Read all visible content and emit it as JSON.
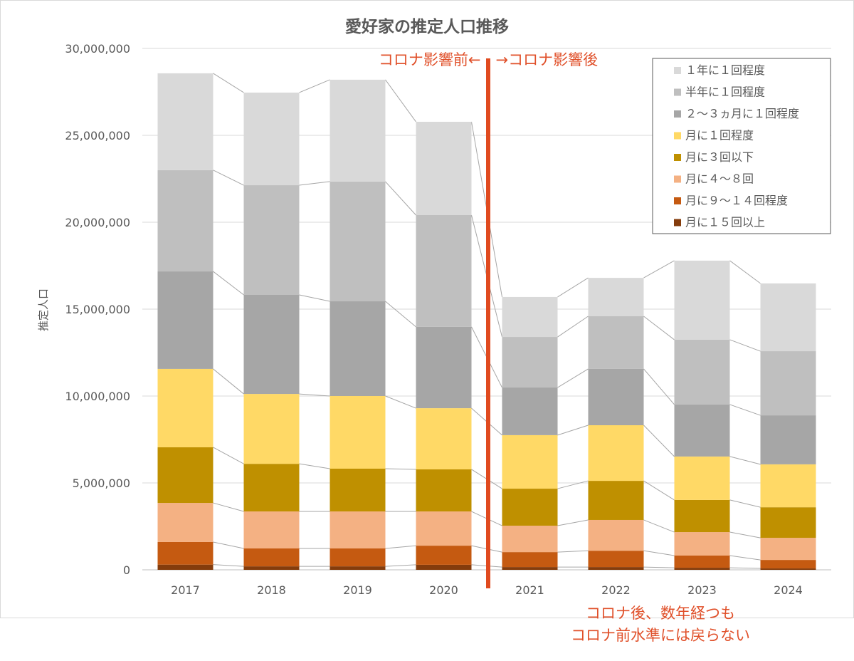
{
  "chart_data": {
    "type": "bar",
    "stacked": true,
    "title": "愛好家の推定人口推移",
    "xlabel": "",
    "ylabel": "推定人口",
    "ylim": [
      0,
      30000000
    ],
    "yticks": [
      "0",
      "5,000,000",
      "10,000,000",
      "15,000,000",
      "20,000,000",
      "25,000,000",
      "30,000,000"
    ],
    "ytick_values": [
      0,
      5000000,
      10000000,
      15000000,
      20000000,
      25000000,
      30000000
    ],
    "grid": true,
    "legend_position": "top-right",
    "categories": [
      "2017",
      "2018",
      "2019",
      "2020",
      "2021",
      "2022",
      "2023",
      "2024"
    ],
    "series": [
      {
        "name": "月に１５回以上",
        "color": "#843c0c",
        "values": [
          300000,
          200000,
          200000,
          290000,
          160000,
          160000,
          120000,
          80000
        ]
      },
      {
        "name": "月に９～１４回程度",
        "color": "#c55a11",
        "values": [
          1300000,
          1030000,
          1030000,
          1100000,
          860000,
          940000,
          700000,
          490000
        ]
      },
      {
        "name": "月に４～８回",
        "color": "#f4b183",
        "values": [
          2250000,
          2130000,
          2130000,
          1970000,
          1520000,
          1770000,
          1350000,
          1270000
        ]
      },
      {
        "name": "月に３回以下",
        "color": "#bf9000",
        "values": [
          3200000,
          2740000,
          2460000,
          2420000,
          2130000,
          2250000,
          1850000,
          1760000
        ]
      },
      {
        "name": "月に１回程度",
        "color": "#ffd966",
        "values": [
          4510000,
          4020000,
          4180000,
          3520000,
          3080000,
          3200000,
          2500000,
          2470000
        ]
      },
      {
        "name": "２～３ヵ月に１回程度",
        "color": "#a6a6a6",
        "values": [
          5610000,
          5700000,
          5450000,
          4680000,
          2740000,
          3240000,
          2990000,
          2820000
        ]
      },
      {
        "name": "半年に１回程度",
        "color": "#bfbfbf",
        "values": [
          5830000,
          6310000,
          6890000,
          6430000,
          2910000,
          3030000,
          3730000,
          3690000
        ]
      },
      {
        "name": "１年に１回程度",
        "color": "#d9d9d9",
        "values": [
          5570000,
          5330000,
          5860000,
          5370000,
          2300000,
          2210000,
          4550000,
          3900000
        ]
      }
    ],
    "annotations": {
      "divider_between": [
        "2020",
        "2021"
      ],
      "divider_color": "#e04a1f",
      "before_after": "コロナ影響前←　→コロナ影響後",
      "note_line1": "コロナ後、数年経つも",
      "note_line2": "コロナ前水準には戻らない"
    }
  }
}
